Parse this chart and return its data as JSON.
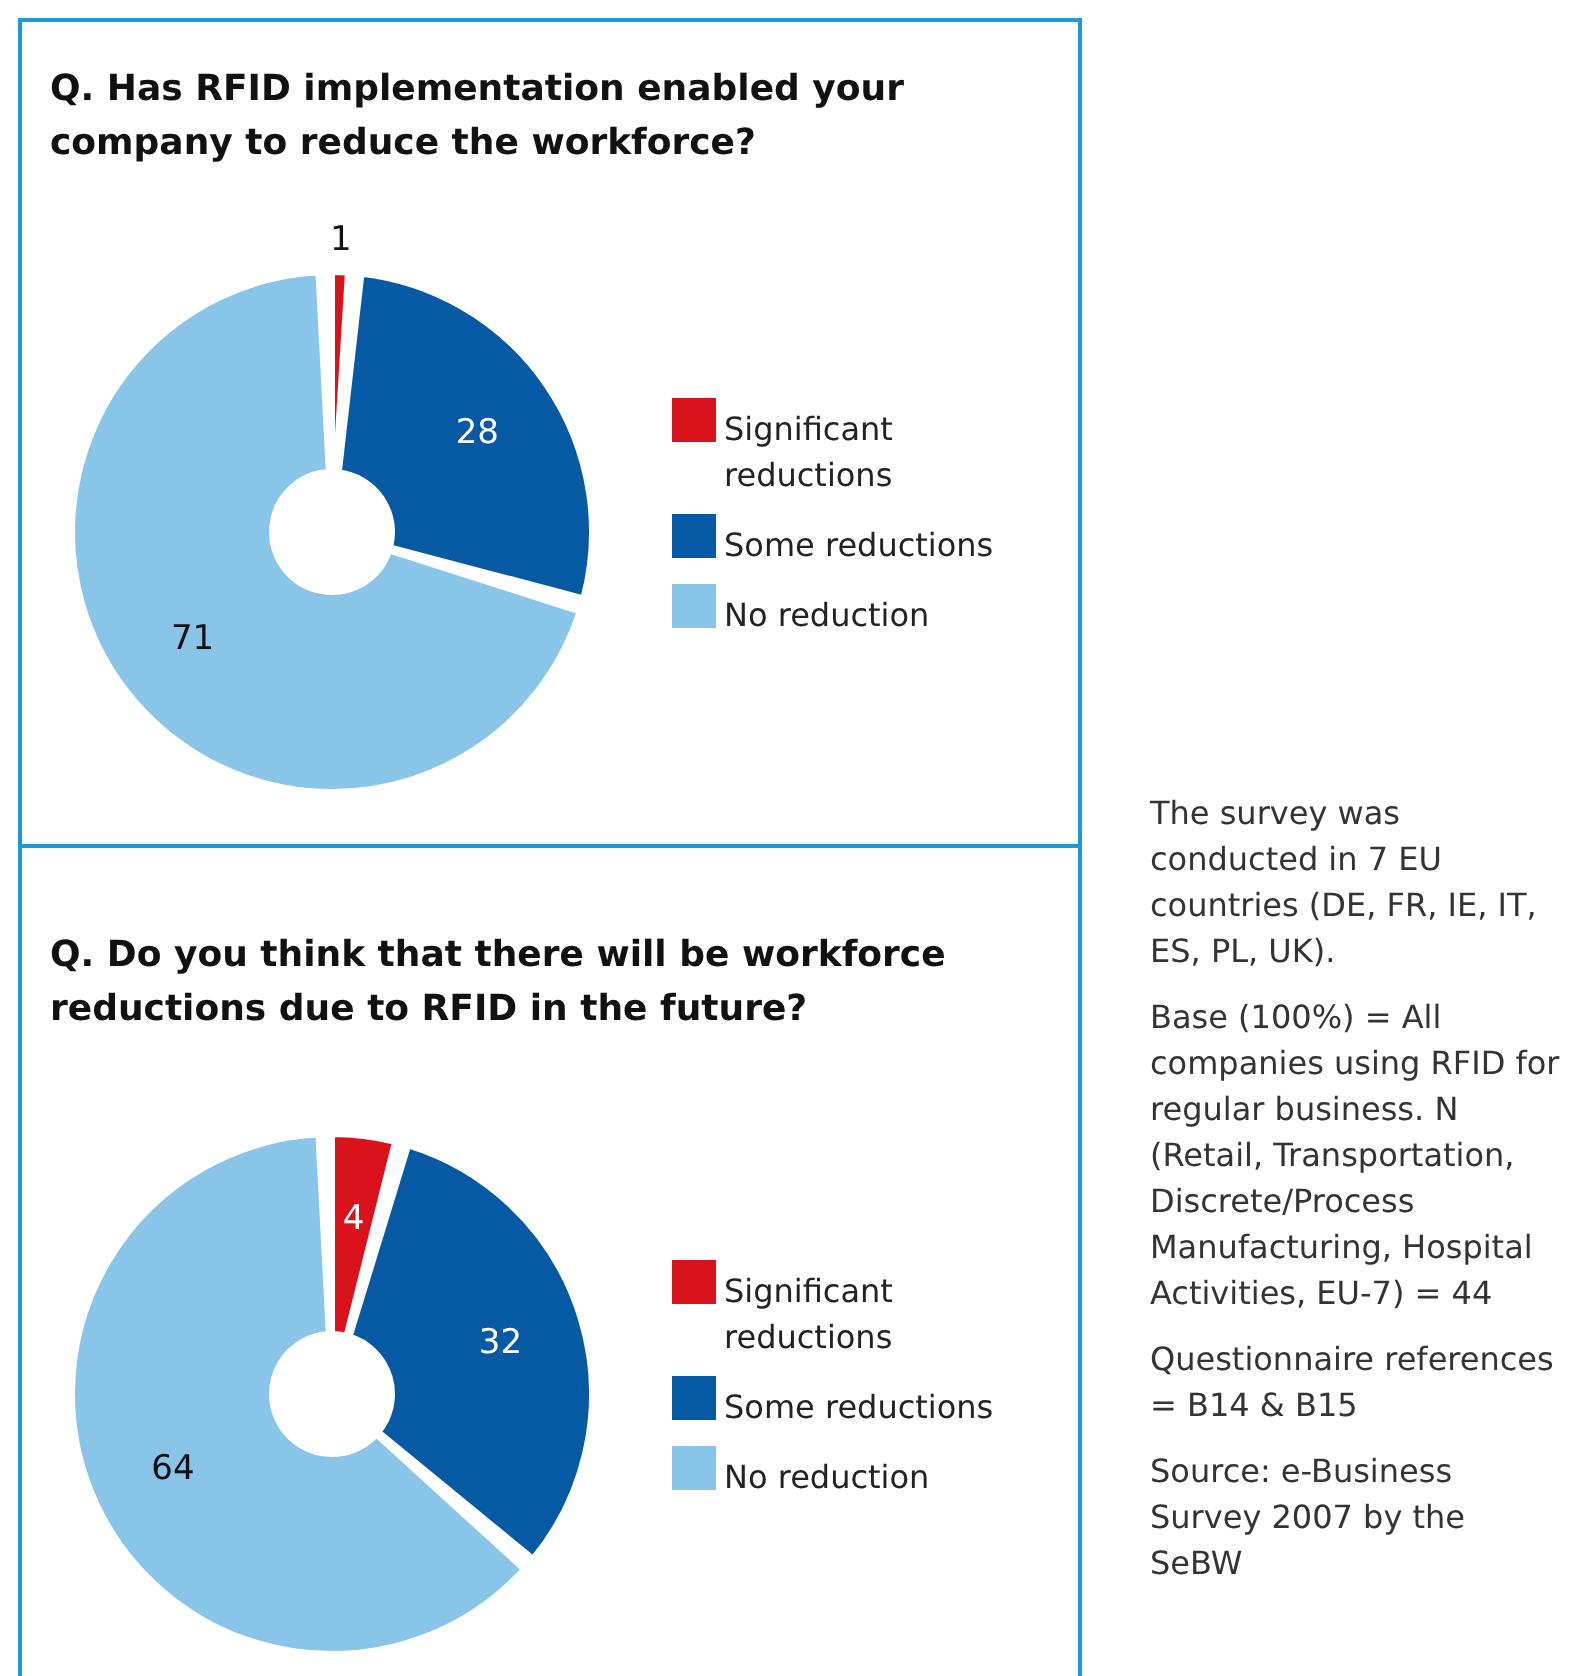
{
  "chart_data": [
    {
      "type": "donut",
      "title": "Q. Has RFID implementation enabled your company to reduce the workforce?",
      "categories": [
        "Significant reductions",
        "Some reductions",
        "No reduction"
      ],
      "values": [
        1,
        28,
        71
      ],
      "colors": [
        "#d9121b",
        "#0659a3",
        "#88c5e8"
      ],
      "data_labels": true,
      "legend": "right"
    },
    {
      "type": "donut",
      "title": "Q. Do you think that there will be workforce reductions due to RFID in the future?",
      "categories": [
        "Significant reductions",
        "Some reductions",
        "No reduction"
      ],
      "values": [
        4,
        32,
        64
      ],
      "colors": [
        "#d9121b",
        "#0659a3",
        "#88c5e8"
      ],
      "data_labels": true,
      "legend": "right"
    },
    {
      "type": "other",
      "annotations": [
        "The survey was conducted in 7 EU countries (DE, FR, IE, IT, ES, PL, UK).",
        "Base (100%) = All companies using RFID for regular business. N (Retail, Transportation, Discrete/Process Manufacturing, Hospital Activities, EU-7) = 44",
        "Questionnaire references = B14 & B15",
        "Source: e-Business Survey 2007 by the SeBW"
      ]
    }
  ]
}
